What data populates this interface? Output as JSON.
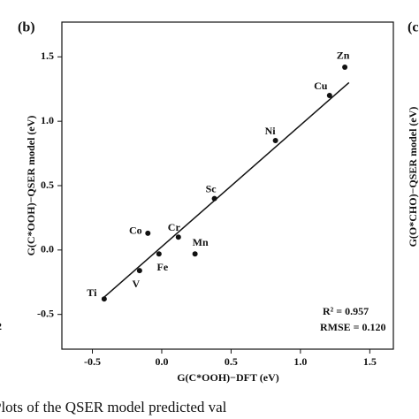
{
  "chart_data": {
    "type": "scatter",
    "panel_label": "(b)",
    "xlabel": "G(C*OOH)−DFT (eV)",
    "ylabel": "G(C*OOH)−QSER model (eV)",
    "xlim": [
      -0.72,
      1.67
    ],
    "ylim": [
      -0.77,
      1.77
    ],
    "xticks": [
      -0.5,
      {
        "value": 0,
        "label": "0.0"
      },
      0.5,
      {
        "value": 1,
        "label": "1.0"
      },
      1.5
    ],
    "yticks": [
      -0.5,
      {
        "value": 0,
        "label": "0.0"
      },
      0.5,
      {
        "value": 1,
        "label": "1.0"
      },
      1.5
    ],
    "color": "#111111",
    "labels": [
      "Ti",
      "V",
      "Fe",
      "Co",
      "Cr",
      "Mn",
      "Sc",
      "Ni",
      "Cu",
      "Zn"
    ],
    "x": [
      -0.415,
      -0.16,
      -0.02,
      -0.1,
      0.12,
      0.24,
      0.38,
      0.82,
      1.21,
      1.32
    ],
    "values": [
      -0.38,
      -0.16,
      -0.03,
      0.13,
      0.1,
      -0.03,
      0.4,
      0.85,
      1.2,
      1.42
    ],
    "fit_line": {
      "x": [
        -0.43,
        1.35
      ],
      "values": [
        -0.38,
        1.3
      ]
    },
    "annotations": [
      "R² = 0.957",
      "RMSE = 0.120"
    ],
    "neighbor_texts": [
      "2",
      "(c",
      "G(O*CHO)−QSER model (eV)"
    ],
    "caption": "Plots of the QSER model predicted val"
  }
}
